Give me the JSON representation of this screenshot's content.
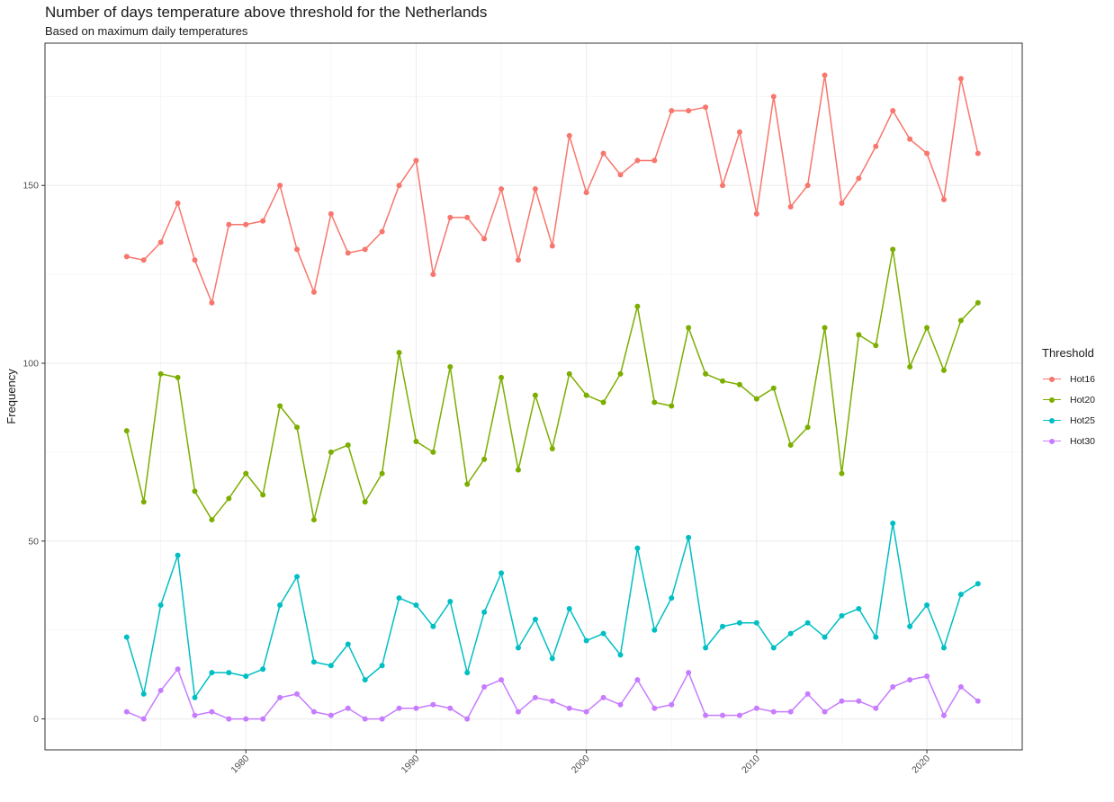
{
  "chart_data": {
    "type": "line",
    "title": "Number of days temperature above threshold for the Netherlands",
    "subtitle": "Based on maximum daily temperatures",
    "xlabel": "",
    "ylabel": "Frequency",
    "legend_title": "Threshold",
    "legend_position": "right",
    "grid": true,
    "x_ticks": [
      1980,
      1990,
      2000,
      2010,
      2020
    ],
    "y_ticks": [
      0,
      50,
      100,
      150
    ],
    "xlim": [
      1968.2,
      2025.6
    ],
    "ylim": [
      -8.7,
      190
    ],
    "x": [
      1973,
      1974,
      1975,
      1976,
      1977,
      1978,
      1979,
      1980,
      1981,
      1982,
      1983,
      1984,
      1985,
      1986,
      1987,
      1988,
      1989,
      1990,
      1991,
      1992,
      1993,
      1994,
      1995,
      1996,
      1997,
      1998,
      1999,
      2000,
      2001,
      2002,
      2003,
      2004,
      2005,
      2006,
      2007,
      2008,
      2009,
      2010,
      2011,
      2012,
      2013,
      2014,
      2015,
      2016,
      2017,
      2018,
      2019,
      2020,
      2021,
      2022,
      2023
    ],
    "series": [
      {
        "name": "Hot16",
        "color": "#F8766D",
        "values": [
          130,
          129,
          134,
          145,
          129,
          117,
          139,
          139,
          140,
          150,
          132,
          120,
          142,
          131,
          132,
          137,
          150,
          157,
          125,
          141,
          141,
          135,
          149,
          129,
          149,
          133,
          164,
          148,
          159,
          153,
          157,
          157,
          171,
          171,
          172,
          150,
          165,
          142,
          175,
          144,
          150,
          181,
          145,
          152,
          161,
          171,
          163,
          159,
          146,
          180,
          159
        ]
      },
      {
        "name": "Hot20",
        "color": "#7CAE00",
        "values": [
          81,
          61,
          97,
          96,
          64,
          56,
          62,
          69,
          63,
          88,
          82,
          56,
          75,
          77,
          61,
          69,
          103,
          78,
          75,
          99,
          66,
          73,
          96,
          70,
          91,
          76,
          97,
          91,
          89,
          97,
          116,
          89,
          88,
          110,
          97,
          95,
          94,
          90,
          93,
          77,
          82,
          110,
          69,
          108,
          105,
          132,
          99,
          110,
          98,
          112,
          117
        ]
      },
      {
        "name": "Hot25",
        "color": "#00BFC4",
        "values": [
          23,
          7,
          32,
          46,
          6,
          13,
          13,
          12,
          14,
          32,
          40,
          16,
          15,
          21,
          11,
          15,
          34,
          32,
          26,
          33,
          13,
          30,
          41,
          20,
          28,
          17,
          31,
          22,
          24,
          18,
          48,
          25,
          34,
          51,
          20,
          26,
          27,
          27,
          20,
          24,
          27,
          23,
          29,
          31,
          23,
          55,
          26,
          32,
          20,
          35,
          38
        ]
      },
      {
        "name": "Hot30",
        "color": "#C77CFF",
        "values": [
          2,
          0,
          8,
          14,
          1,
          2,
          0,
          0,
          0,
          6,
          7,
          2,
          1,
          3,
          0,
          0,
          3,
          3,
          4,
          3,
          0,
          9,
          11,
          2,
          6,
          5,
          3,
          2,
          6,
          4,
          11,
          3,
          4,
          13,
          1,
          1,
          1,
          3,
          2,
          2,
          7,
          2,
          5,
          5,
          3,
          9,
          11,
          12,
          1,
          9,
          5
        ]
      }
    ]
  }
}
